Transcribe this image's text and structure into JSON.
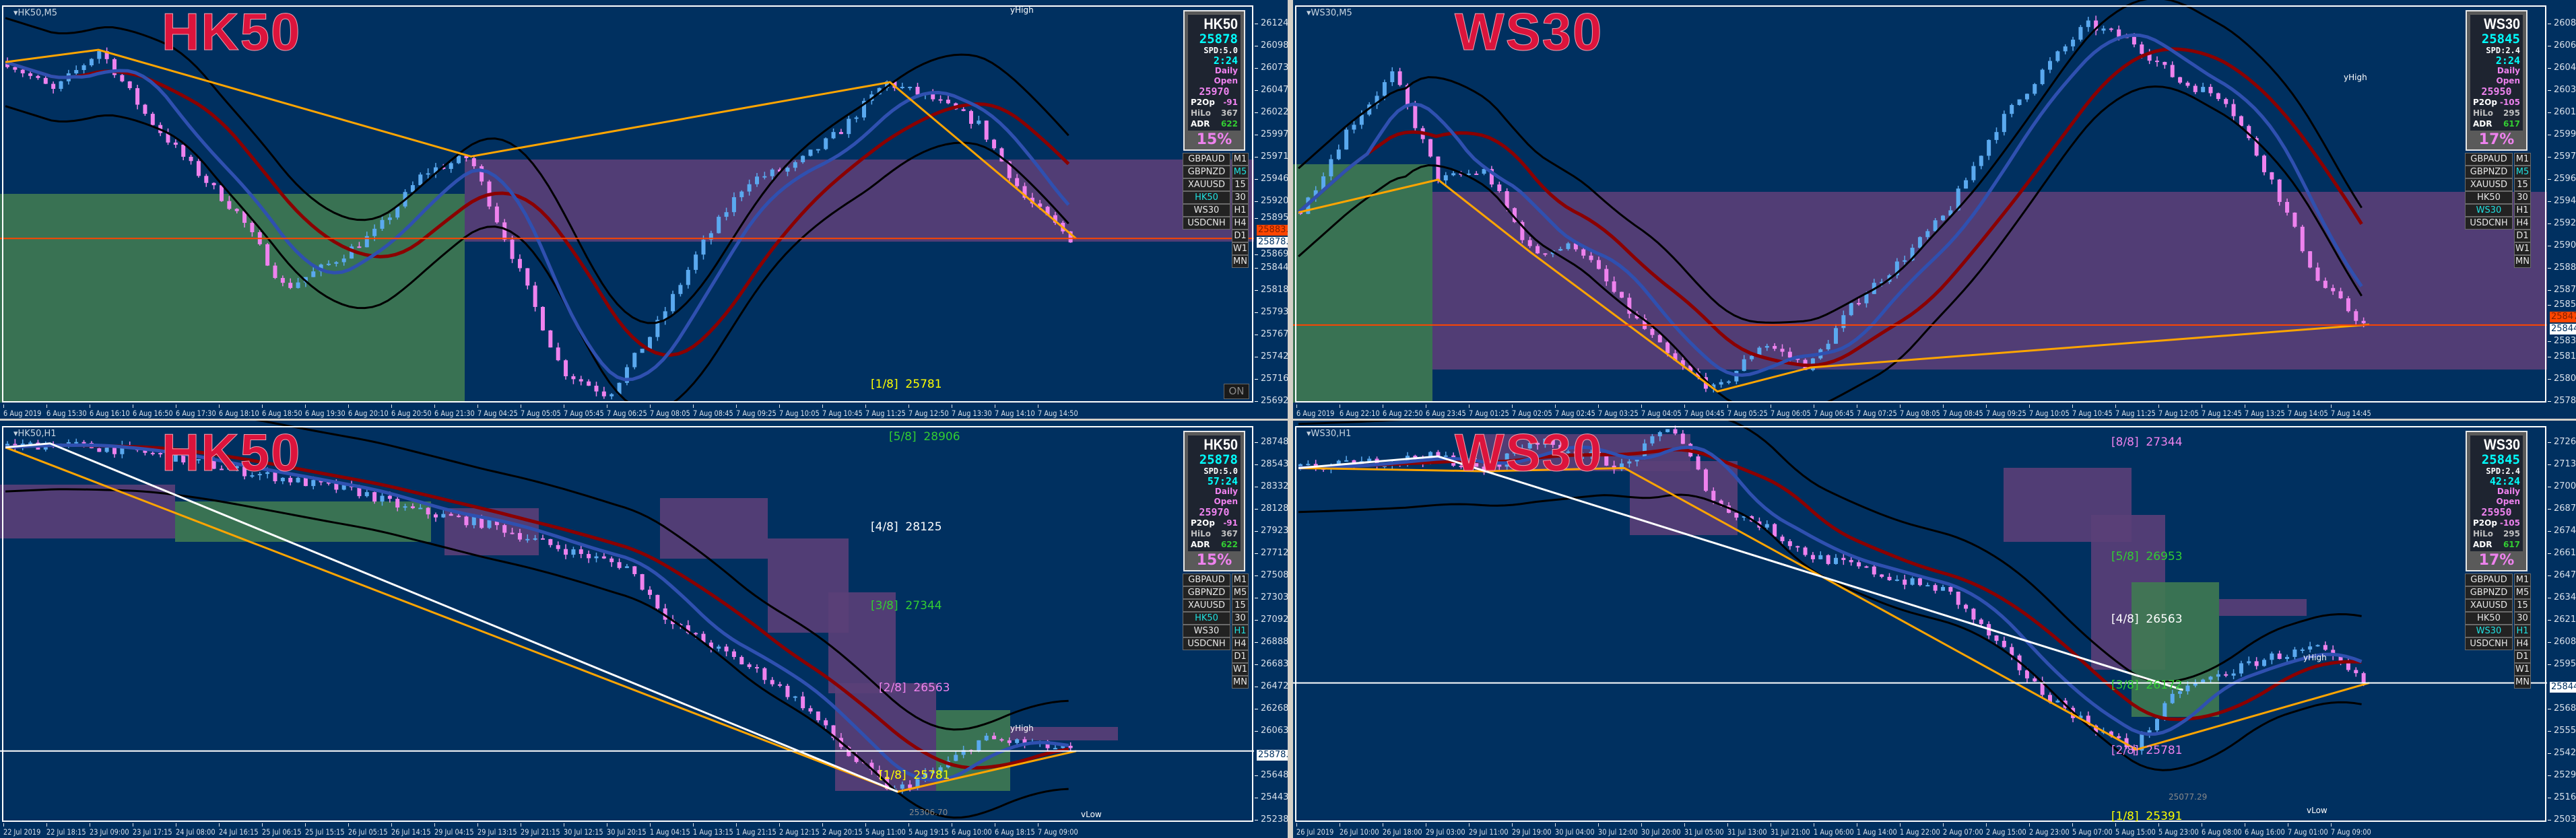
{
  "colors": {
    "background": "#003060",
    "up_candle": "#5aa9ef",
    "down_candle": "#ee82ee",
    "ma_slow": "#8b0000",
    "ma_fast": "#2f50b0",
    "envelope": "#000000",
    "zigzag": "#ffa500",
    "zone_purple": "#5a3f78",
    "zone_green": "#3f7a52",
    "watermark": "#dc143c",
    "active_button": "#20e0e0",
    "adr_value": "#32cd32",
    "p2op_value": "#ee82ee",
    "hilo_value": "#c0c0c0"
  },
  "panes": [
    {
      "title": "HK50,M5",
      "watermark": "HK50",
      "info": {
        "symbol": "HK50",
        "price": "25878",
        "spread": "SPD:5.0",
        "timer": "2:24",
        "daily_open_label": "Daily Open",
        "daily_open": "25970",
        "p2op_label": "P2Op",
        "p2op": "-91",
        "hilo_label": "HiLo",
        "hilo": "367",
        "adr_label": "ADR",
        "adr": "622",
        "adr_pct": "15%"
      },
      "symbols": [
        "GBPAUD",
        "GBPNZD",
        "XAUUSD",
        "HK50",
        "WS30",
        "USDCNH"
      ],
      "active_symbol": "HK50",
      "timeframes": [
        "M1",
        "M5",
        "15",
        "30",
        "H1",
        "H4",
        "D1",
        "W1",
        "MN"
      ],
      "active_timeframe": "M5",
      "price_ticks": [
        "26124.05",
        "26098.55",
        "26073.05",
        "26047.55",
        "26022.05",
        "25997.30",
        "25971.80",
        "25946.30",
        "25920.80",
        "25895.30",
        "25869.80",
        "25844.30",
        "25818.80",
        "25793.30",
        "25767.80",
        "25742.30",
        "25716.80",
        "25692.05"
      ],
      "price_labels": [
        {
          "value": "25883.20",
          "kind": "bid"
        },
        {
          "value": "25878.20",
          "kind": "last"
        }
      ],
      "time_labels": [
        "6 Aug 2019",
        "6 Aug 15:30",
        "6 Aug 16:10",
        "6 Aug 16:50",
        "6 Aug 17:30",
        "6 Aug 18:10",
        "6 Aug 18:50",
        "6 Aug 19:30",
        "6 Aug 20:10",
        "6 Aug 20:50",
        "6 Aug 21:30",
        "7 Aug 04:25",
        "7 Aug 05:05",
        "7 Aug 05:45",
        "7 Aug 06:25",
        "7 Aug 08:05",
        "7 Aug 08:45",
        "7 Aug 09:25",
        "7 Aug 10:05",
        "7 Aug 10:45",
        "7 Aug 11:25",
        "7 Aug 12:50",
        "7 Aug 13:30",
        "7 Aug 14:10",
        "7 Aug 14:50"
      ],
      "close_path": [
        26080,
        26047,
        26094,
        26019,
        25960,
        25906,
        25821,
        25850,
        25887,
        25953,
        25972,
        25850,
        25727,
        25699,
        25774,
        25868,
        25944,
        25960,
        26000,
        26057,
        26038,
        26010,
        25925,
        25878
      ],
      "levels": [
        {
          "text": "[1/8]  25781",
          "color": "#ffff00"
        }
      ],
      "markers": [
        "yHigh"
      ],
      "on_button": "ON"
    },
    {
      "title": "WS30,M5",
      "watermark": "WS30",
      "info": {
        "symbol": "WS30",
        "price": "25845",
        "spread": "SPD:2.4",
        "timer": "2:24",
        "daily_open_label": "Daily Open",
        "daily_open": "25950",
        "p2op_label": "P2Op",
        "p2op": "-105",
        "hilo_label": "HiLo",
        "hilo": "295",
        "adr_label": "ADR",
        "adr": "617",
        "adr_pct": "17%"
      },
      "symbols": [
        "GBPAUD",
        "GBPNZD",
        "XAUUSD",
        "HK50",
        "WS30",
        "USDCNH"
      ],
      "active_symbol": "WS30",
      "timeframes": [
        "M1",
        "M5",
        "15",
        "30",
        "H1",
        "H4",
        "D1",
        "W1",
        "MN"
      ],
      "active_timeframe": "M5",
      "price_ticks": [
        "26083.80",
        "26066.30",
        "26048.80",
        "26030.80",
        "26013.30",
        "25995.80",
        "25978.30",
        "25960.30",
        "25942.80",
        "25925.30",
        "25907.80",
        "25889.80",
        "25872.30",
        "25854.80",
        "25836.80",
        "25819.30",
        "25801.80",
        "25784.30"
      ],
      "price_labels": [
        {
          "value": "25847.98",
          "kind": "bid"
        },
        {
          "value": "25844.68",
          "kind": "last"
        }
      ],
      "time_labels": [
        "6 Aug 2019",
        "6 Aug 22:10",
        "6 Aug 22:50",
        "6 Aug 23:45",
        "7 Aug 01:25",
        "7 Aug 02:05",
        "7 Aug 02:45",
        "7 Aug 03:25",
        "7 Aug 04:05",
        "7 Aug 04:45",
        "7 Aug 05:25",
        "7 Aug 06:05",
        "7 Aug 06:45",
        "7 Aug 07:25",
        "7 Aug 08:05",
        "7 Aug 08:45",
        "7 Aug 09:25",
        "7 Aug 10:05",
        "7 Aug 10:45",
        "7 Aug 11:25",
        "7 Aug 12:05",
        "7 Aug 12:45",
        "7 Aug 13:25",
        "7 Aug 14:05",
        "7 Aug 14:45"
      ],
      "close_path": [
        25934,
        25999,
        26044,
        25960,
        25967,
        25902,
        25908,
        25860,
        25818,
        25792,
        25831,
        25811,
        25863,
        25896,
        25934,
        25999,
        26044,
        26083,
        26070,
        26038,
        26025,
        25960,
        25880,
        25845
      ],
      "levels": [],
      "markers": [
        "yHigh"
      ]
    },
    {
      "title": "HK50,H1",
      "watermark": "HK50",
      "info": {
        "symbol": "HK50",
        "price": "25878",
        "spread": "SPD:5.0",
        "timer": "57:24",
        "daily_open_label": "Daily Open",
        "daily_open": "25970",
        "p2op_label": "P2Op",
        "p2op": "-91",
        "hilo_label": "HiLo",
        "hilo": "367",
        "adr_label": "ADR",
        "adr": "622",
        "adr_pct": "15%"
      },
      "symbols": [
        "GBPAUD",
        "GBPNZD",
        "XAUUSD",
        "HK50",
        "WS30",
        "USDCNH"
      ],
      "active_symbol": "HK50",
      "timeframes": [
        "M1",
        "M5",
        "15",
        "30",
        "H1",
        "H4",
        "D1",
        "W1",
        "MN"
      ],
      "active_timeframe": "H1",
      "price_ticks": [
        "28748.10",
        "28543.50",
        "28332.70",
        "28128.10",
        "27923.50",
        "27712.70",
        "27508.10",
        "27303.50",
        "27092.70",
        "26888.10",
        "26683.50",
        "26472.70",
        "26268.10",
        "26063.50",
        "",
        "25648.10",
        "25443.50",
        "25238.90"
      ],
      "price_labels": [
        {
          "value": "25878.20",
          "kind": "last"
        }
      ],
      "time_labels": [
        "22 Jul 2019",
        "22 Jul 18:15",
        "23 Jul 09:00",
        "23 Jul 17:15",
        "24 Jul 08:00",
        "24 Jul 16:15",
        "25 Jul 06:15",
        "25 Jul 15:15",
        "26 Jul 05:15",
        "26 Jul 14:15",
        "29 Jul 04:15",
        "29 Jul 13:15",
        "29 Jul 21:15",
        "30 Jul 12:15",
        "30 Jul 20:15",
        "1 Aug 04:15",
        "1 Aug 13:15",
        "1 Aug 21:15",
        "2 Aug 12:15",
        "2 Aug 20:15",
        "5 Aug 11:00",
        "5 Aug 19:15",
        "6 Aug 10:00",
        "6 Aug 18:15",
        "7 Aug 09:00"
      ],
      "close_path": [
        28700,
        28737,
        28700,
        28660,
        28585,
        28500,
        28431,
        28350,
        28279,
        28128,
        28050,
        27972,
        27822,
        27700,
        27591,
        27059,
        26828,
        26602,
        26296,
        25839,
        25500,
        25700,
        25990,
        25950,
        25878
      ],
      "levels": [
        {
          "text": "[5/8]  28906",
          "color": "#32cd32"
        },
        {
          "text": "[4/8]  28125",
          "color": "#ffffff"
        },
        {
          "text": "[3/8]  27344",
          "color": "#32cd32"
        },
        {
          "text": "[2/8]  26563",
          "color": "#ee82ee"
        },
        {
          "text": "[1/8]  25781",
          "color": "#ffff00"
        }
      ],
      "markers": [
        "yHigh",
        "vLow",
        "25306.70"
      ]
    },
    {
      "title": "WS30,H1",
      "watermark": "WS30",
      "info": {
        "symbol": "WS30",
        "price": "25845",
        "spread": "SPD:2.4",
        "timer": "42:24",
        "daily_open_label": "Daily Open",
        "daily_open": "25950",
        "p2op_label": "P2Op",
        "p2op": "-105",
        "hilo_label": "HiLo",
        "hilo": "295",
        "adr_label": "ADR",
        "adr": "617",
        "adr_pct": "17%"
      },
      "symbols": [
        "GBPAUD",
        "GBPNZD",
        "XAUUSD",
        "HK50",
        "WS30",
        "USDCNH"
      ],
      "active_symbol": "WS30",
      "timeframes": [
        "M1",
        "M5",
        "15",
        "30",
        "H1",
        "H4",
        "D1",
        "W1",
        "MN"
      ],
      "active_timeframe": "H1",
      "price_ticks": [
        "27269.75",
        "27139.40",
        "27009.05",
        "26874.75",
        "26744.40",
        "26614.05",
        "26479.75",
        "26349.40",
        "26219.05",
        "26084.75",
        "25954.40",
        "",
        "25689.75",
        "25559.40",
        "25429.05",
        "25294.75",
        "25164.40",
        "25034.05"
      ],
      "price_labels": [
        {
          "value": "25844.68",
          "kind": "last"
        }
      ],
      "time_labels": [
        "26 Jul 2019",
        "26 Jul 10:00",
        "26 Jul 18:00",
        "29 Jul 03:00",
        "29 Jul 11:00",
        "29 Jul 19:00",
        "30 Jul 04:00",
        "30 Jul 12:00",
        "30 Jul 20:00",
        "31 Jul 05:00",
        "31 Jul 13:00",
        "31 Jul 21:00",
        "1 Aug 06:00",
        "1 Aug 14:00",
        "1 Aug 22:00",
        "2 Aug 07:00",
        "2 Aug 15:00",
        "2 Aug 23:00",
        "5 Aug 07:00",
        "5 Aug 15:00",
        "5 Aug 23:00",
        "6 Aug 08:00",
        "6 Aug 16:00",
        "7 Aug 01:00",
        "7 Aug 09:00"
      ],
      "close_path": [
        27117,
        27136,
        27166,
        27186,
        27098,
        27282,
        27214,
        27117,
        27379,
        26900,
        26776,
        26600,
        26533,
        26450,
        26388,
        26094,
        25800,
        25609,
        25450,
        25803,
        25902,
        25999,
        26047,
        25845
      ],
      "levels": [
        {
          "text": "[8/8]  27344",
          "color": "#ee82ee"
        },
        {
          "text": "[5/8]  26953",
          "color": "#32cd32"
        },
        {
          "text": "[4/8]  26563",
          "color": "#ffffff"
        },
        {
          "text": "[3/8]  26172",
          "color": "#32cd32"
        },
        {
          "text": "[2/8]  25781",
          "color": "#ee82ee"
        },
        {
          "text": "[1/8]  25391",
          "color": "#ffff00"
        }
      ],
      "markers": [
        "yHigh",
        "vLow",
        "25077.29"
      ]
    }
  ]
}
